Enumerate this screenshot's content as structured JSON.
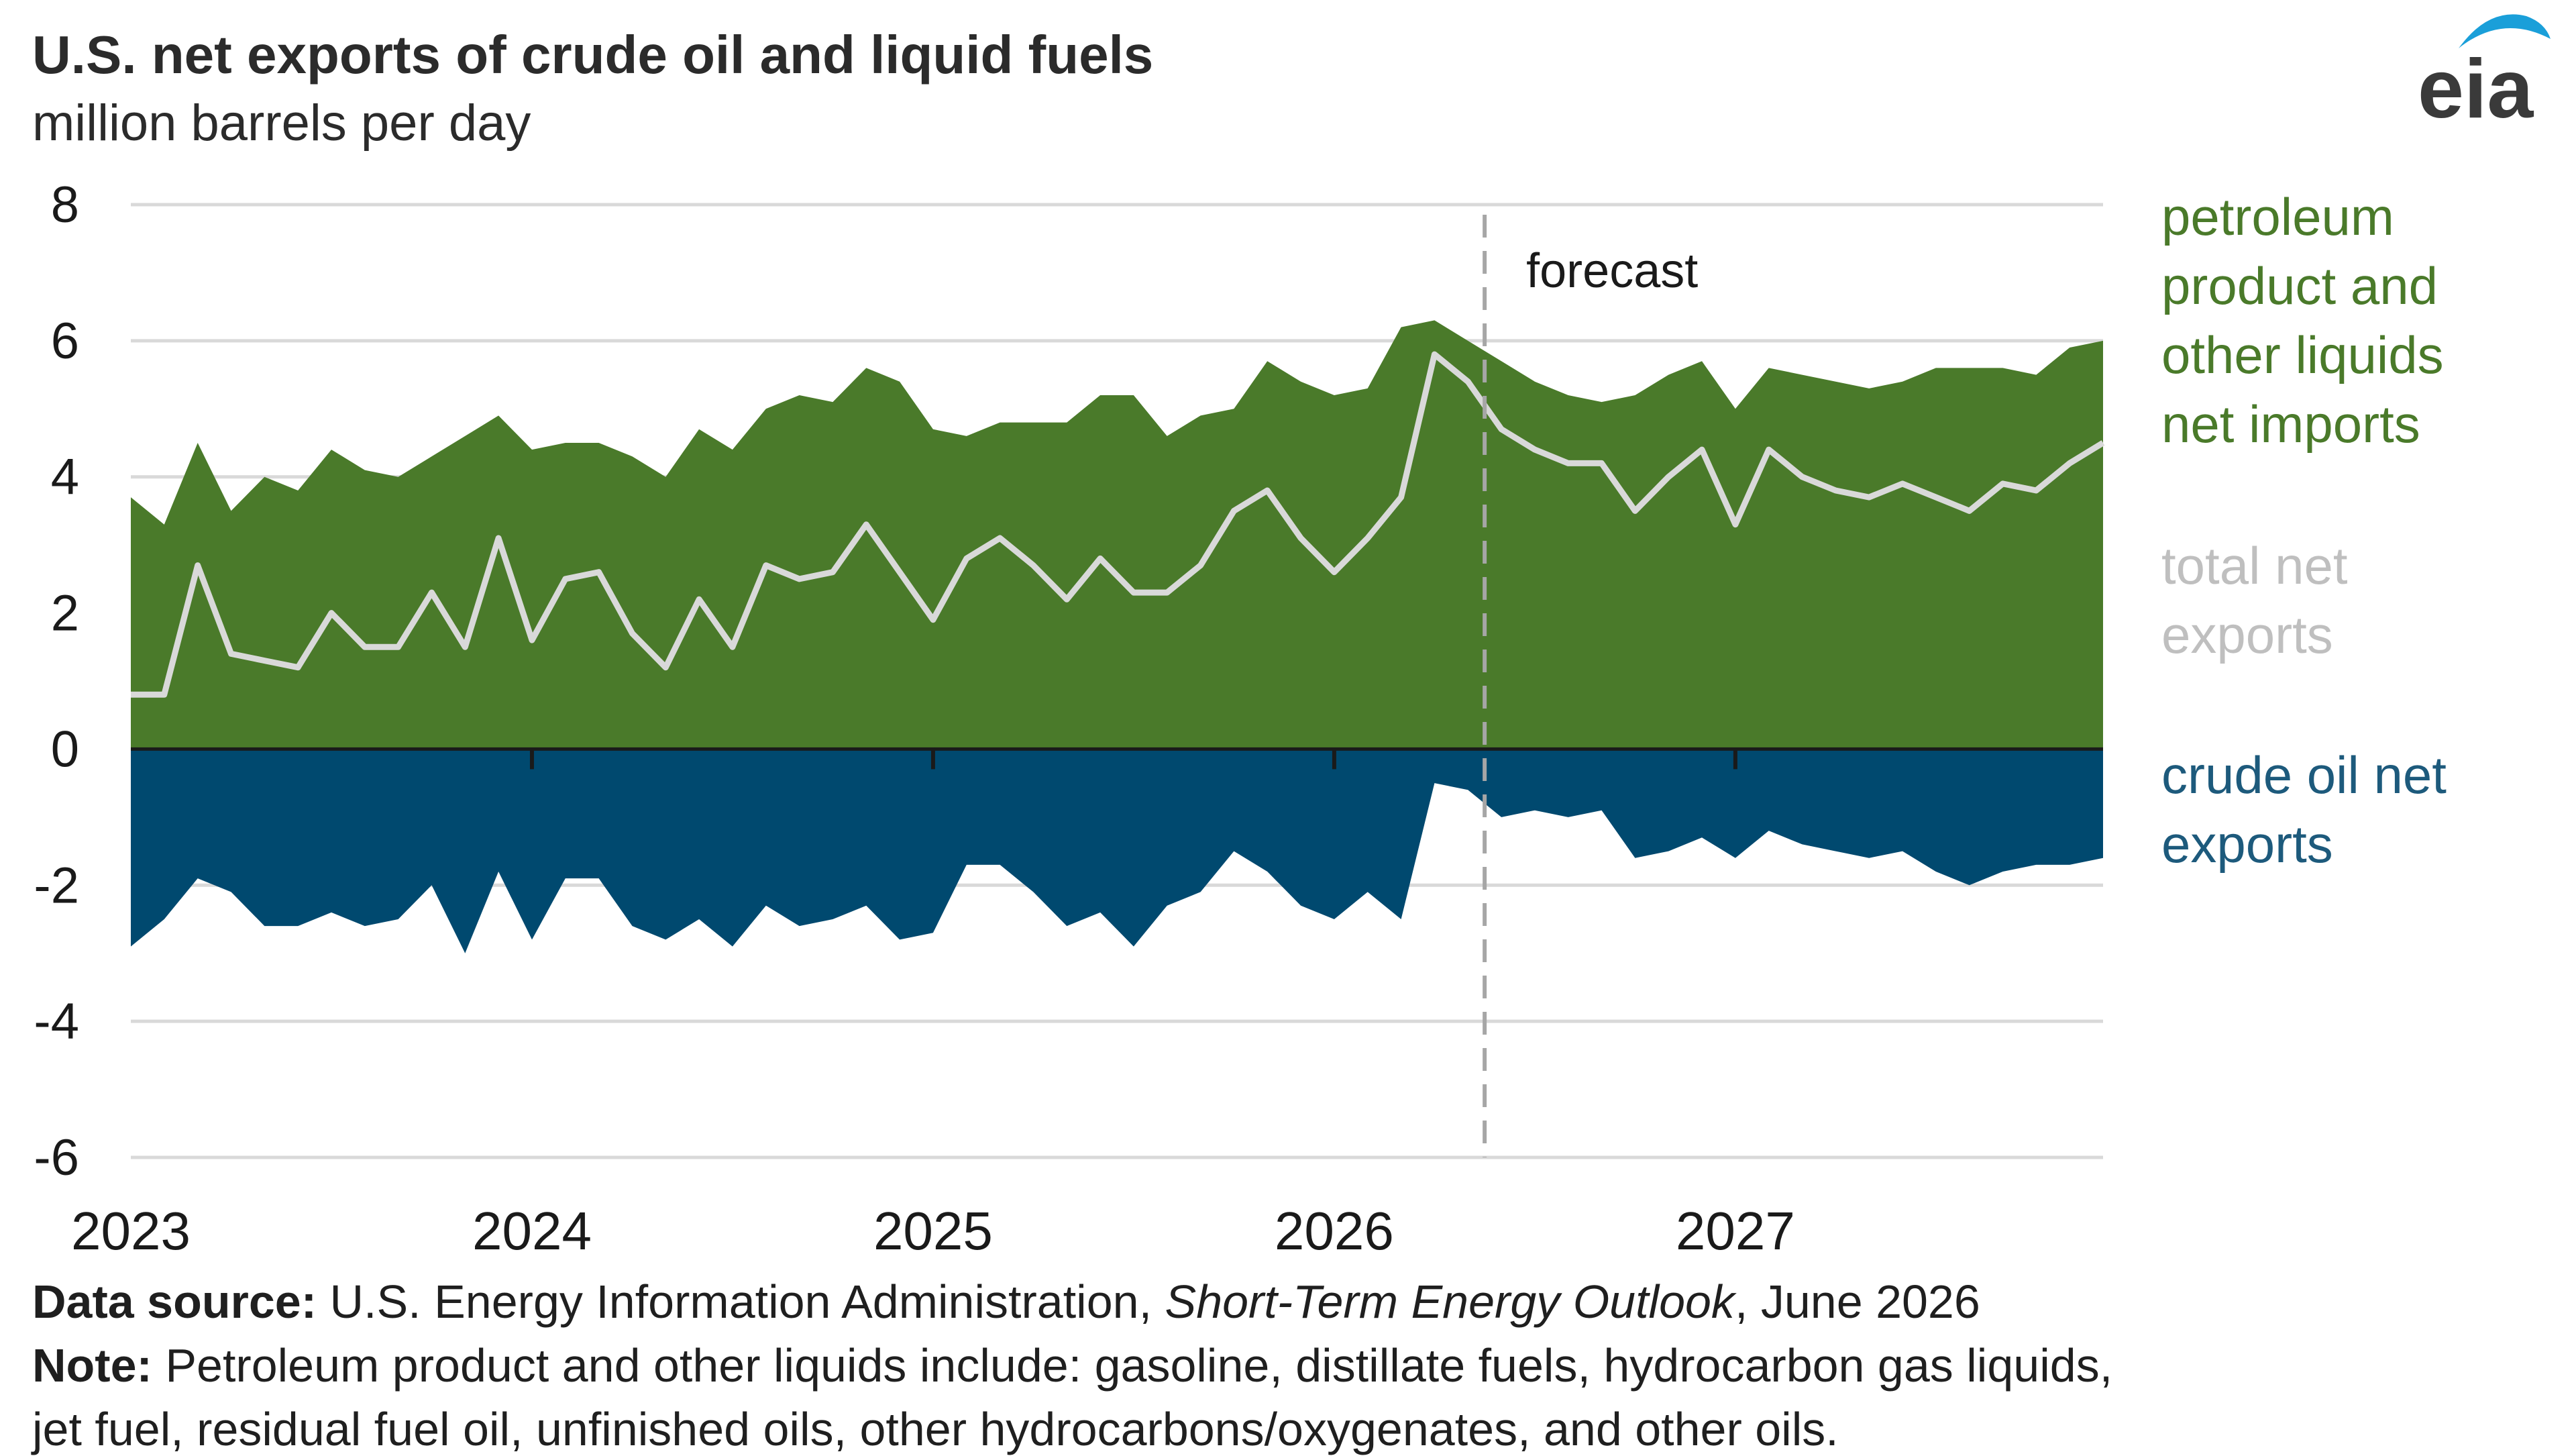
{
  "header": {
    "title": "U.S. net exports of crude oil and liquid fuels",
    "subtitle": "million barrels per day",
    "logo_text": "eia"
  },
  "chart_data": {
    "type": "area",
    "title": "U.S. net exports of crude oil and liquid fuels",
    "ylabel": "million barrels per day",
    "ylim": [
      -6,
      8
    ],
    "yticks": [
      8,
      6,
      4,
      2,
      0,
      -2,
      -4,
      -6
    ],
    "xticks": [
      "2023",
      "2024",
      "2025",
      "2026",
      "2027"
    ],
    "grid": true,
    "forecast_label": "forecast",
    "forecast_start_month_index": 41,
    "x": [
      "2023-01",
      "2023-02",
      "2023-03",
      "2023-04",
      "2023-05",
      "2023-06",
      "2023-07",
      "2023-08",
      "2023-09",
      "2023-10",
      "2023-11",
      "2023-12",
      "2024-01",
      "2024-02",
      "2024-03",
      "2024-04",
      "2024-05",
      "2024-06",
      "2024-07",
      "2024-08",
      "2024-09",
      "2024-10",
      "2024-11",
      "2024-12",
      "2025-01",
      "2025-02",
      "2025-03",
      "2025-04",
      "2025-05",
      "2025-06",
      "2025-07",
      "2025-08",
      "2025-09",
      "2025-10",
      "2025-11",
      "2025-12",
      "2026-01",
      "2026-02",
      "2026-03",
      "2026-04",
      "2026-05",
      "2026-06",
      "2026-07",
      "2026-08",
      "2026-09",
      "2026-10",
      "2026-11",
      "2026-12",
      "2027-01",
      "2027-02",
      "2027-03",
      "2027-04",
      "2027-05",
      "2027-06",
      "2027-07",
      "2027-08",
      "2027-09",
      "2027-10",
      "2027-11",
      "2027-12"
    ],
    "series": [
      {
        "name": "petroleum product and other liquids net imports",
        "color": "#4a7a2a",
        "values": [
          3.7,
          3.3,
          4.5,
          3.5,
          4.0,
          3.8,
          4.4,
          4.1,
          4.0,
          4.3,
          4.6,
          4.9,
          4.4,
          4.5,
          4.5,
          4.3,
          4.0,
          4.7,
          4.4,
          5.0,
          5.2,
          5.1,
          5.6,
          5.4,
          4.7,
          4.6,
          4.8,
          4.8,
          4.8,
          5.2,
          5.2,
          4.6,
          4.9,
          5.0,
          5.7,
          5.4,
          5.2,
          5.3,
          6.2,
          6.3,
          6.0,
          5.7,
          5.4,
          5.2,
          5.1,
          5.2,
          5.5,
          5.7,
          5.0,
          5.6,
          5.5,
          5.4,
          5.3,
          5.4,
          5.6,
          5.6,
          5.6,
          5.5,
          5.9,
          6.0
        ]
      },
      {
        "name": "total net exports",
        "color": "#d9d9d9",
        "values": [
          0.8,
          0.8,
          2.7,
          1.4,
          1.3,
          1.2,
          2.0,
          1.5,
          1.5,
          2.3,
          1.5,
          3.1,
          1.6,
          2.5,
          2.6,
          1.7,
          1.2,
          2.2,
          1.5,
          2.7,
          2.5,
          2.6,
          3.3,
          2.6,
          1.9,
          2.8,
          3.1,
          2.7,
          2.2,
          2.8,
          2.3,
          2.3,
          2.7,
          3.5,
          3.8,
          3.1,
          2.6,
          3.1,
          3.7,
          5.8,
          5.4,
          4.7,
          4.4,
          4.2,
          4.2,
          3.5,
          4.0,
          4.4,
          3.3,
          4.4,
          4.0,
          3.8,
          3.7,
          3.9,
          3.7,
          3.5,
          3.9,
          3.8,
          4.2,
          4.5
        ]
      },
      {
        "name": "crude oil net exports",
        "color": "#00496f",
        "values": [
          -2.9,
          -2.5,
          -1.9,
          -2.1,
          -2.6,
          -2.6,
          -2.4,
          -2.6,
          -2.5,
          -2.0,
          -3.0,
          -1.8,
          -2.8,
          -1.9,
          -1.9,
          -2.6,
          -2.8,
          -2.5,
          -2.9,
          -2.3,
          -2.6,
          -2.5,
          -2.3,
          -2.8,
          -2.7,
          -1.7,
          -1.7,
          -2.1,
          -2.6,
          -2.4,
          -2.9,
          -2.3,
          -2.1,
          -1.5,
          -1.8,
          -2.3,
          -2.5,
          -2.1,
          -2.5,
          -0.5,
          -0.6,
          -1.0,
          -0.9,
          -1.0,
          -0.9,
          -1.6,
          -1.5,
          -1.3,
          -1.6,
          -1.2,
          -1.4,
          -1.5,
          -1.6,
          -1.5,
          -1.8,
          -2.0,
          -1.8,
          -1.7,
          -1.7,
          -1.6
        ]
      }
    ],
    "legend_placement": "right",
    "legend": [
      {
        "label_lines": [
          "petroleum",
          "product and",
          "other liquids",
          "net imports"
        ],
        "color": "#4a7a2a"
      },
      {
        "label_lines": [
          "total net",
          "exports"
        ],
        "color": "#bfbfbf"
      },
      {
        "label_lines": [
          "crude oil net",
          "exports"
        ],
        "color": "#1d5a7c"
      }
    ]
  },
  "footer": {
    "source_label": "Data source:",
    "source_text_pre": " U.S. Energy Information Administration, ",
    "source_italic": "Short-Term Energy Outlook",
    "source_text_post": ", June 2026",
    "note_label": "Note:",
    "note_text": " Petroleum product and other liquids include: gasoline, distillate fuels, hydrocarbon gas liquids,",
    "note_line2": "jet fuel, residual fuel oil, unfinished oils, other hydrocarbons/oxygenates, and other oils."
  }
}
